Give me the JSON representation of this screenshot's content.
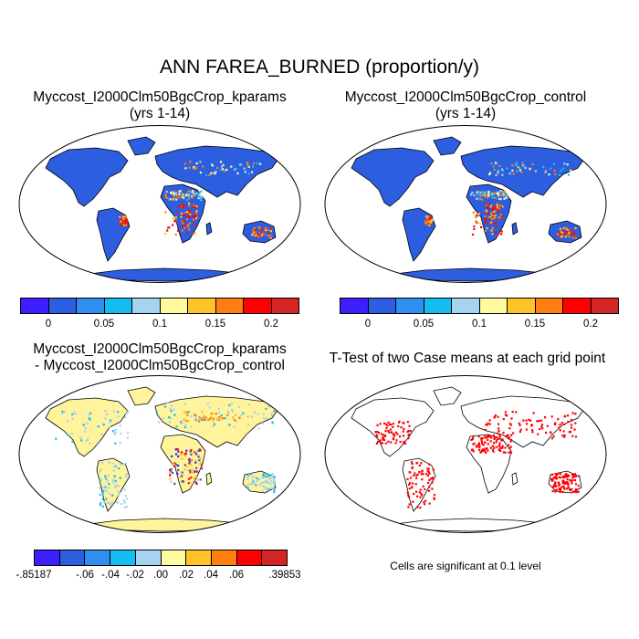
{
  "figure": {
    "title": "ANN FAREA_BURNED (proportion/y)"
  },
  "panels": [
    {
      "id": "kparams",
      "title_line1": "Myccost_I2000Clm50BgcCrop_kparams",
      "title_line2": "(yrs 1-14)",
      "colorbar": {
        "colors": [
          "#3c1eff",
          "#2e5ee0",
          "#2f8ef0",
          "#13bdf0",
          "#a6d3ef",
          "#fffa9e",
          "#ffc229",
          "#ff7e10",
          "#ff0000",
          "#d32426"
        ],
        "tick_labels": [
          "0",
          "0.05",
          "0.1",
          "0.15",
          "0.2"
        ]
      },
      "background_color": "#2e5ee0"
    },
    {
      "id": "control",
      "title_line1": "Myccost_I2000Clm50BgcCrop_control",
      "title_line2": "(yrs 1-14)",
      "colorbar": {
        "colors": [
          "#3c1eff",
          "#2e5ee0",
          "#2f8ef0",
          "#13bdf0",
          "#a6d3ef",
          "#fffa9e",
          "#ffc229",
          "#ff7e10",
          "#ff0000",
          "#d32426"
        ],
        "tick_labels": [
          "0",
          "0.05",
          "0.1",
          "0.15",
          "0.2"
        ]
      },
      "background_color": "#2e5ee0"
    },
    {
      "id": "difference",
      "title_line1": "Myccost_I2000Clm50BgcCrop_kparams",
      "title_line2": "- Myccost_I2000Clm50BgcCrop_control",
      "colorbar": {
        "colors": [
          "#3c1eff",
          "#2e5ee0",
          "#2f8ef0",
          "#13bdf0",
          "#a6d3ef",
          "#fffa9e",
          "#ffc229",
          "#ff7e10",
          "#ff0000",
          "#d32426"
        ],
        "tick_labels": [
          "-.85187",
          "-.06",
          "-.04",
          "-.02",
          ".00",
          ".02",
          ".04",
          ".06",
          ".39853"
        ]
      },
      "background_color": "#fff39c"
    },
    {
      "id": "ttest",
      "title_line1": "T-Test of two Case means at each grid point",
      "note": "Cells are significant at 0.1 level",
      "significant_color": "#ff0000"
    }
  ]
}
